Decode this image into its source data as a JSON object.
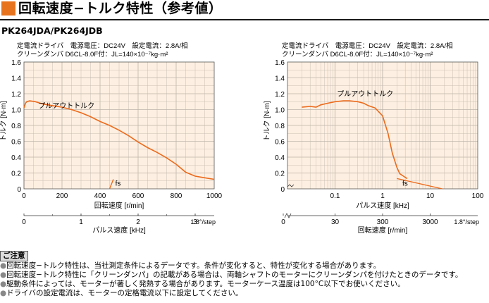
{
  "header": {
    "title": "回転速度−トルク特性（参考値）"
  },
  "model": "PK264JDA/PK264JDB",
  "chart_data": [
    {
      "type": "line",
      "conditions": [
        "定電流ドライバ　電源電圧：DC24V　設定電流：2.8A/相",
        "クリーンダンパ D6CL-8.0F付：JL=140×10⁻⁷kg·m²"
      ],
      "ylabel": "トルク [N·m]",
      "xlabel": "回転速度 [r/min]",
      "xlabel2": "パルス速度 [kHz]",
      "step_label": "1.8°/step",
      "xlim": [
        0,
        1000
      ],
      "ylim": [
        0,
        1.6
      ],
      "x_ticks": [
        "0",
        "200",
        "400",
        "600",
        "800",
        "1000"
      ],
      "x2_ticks": [
        "0",
        "1",
        "2",
        "3"
      ],
      "y_ticks": [
        "0",
        "0.2",
        "0.4",
        "0.6",
        "0.8",
        "1.0",
        "1.2",
        "1.4",
        "1.6"
      ],
      "series": [
        {
          "name": "プルアウトトルク",
          "x": [
            0,
            8,
            15,
            30,
            60,
            100,
            150,
            200,
            250,
            300,
            350,
            400,
            450,
            500,
            550,
            600,
            650,
            700,
            750,
            800,
            850,
            900,
            950,
            1000
          ],
          "y": [
            1.02,
            1.08,
            1.1,
            1.11,
            1.1,
            1.07,
            1.05,
            1.03,
            1.0,
            0.96,
            0.91,
            0.85,
            0.8,
            0.74,
            0.67,
            0.59,
            0.52,
            0.46,
            0.39,
            0.31,
            0.21,
            0.16,
            0.14,
            0.12
          ]
        }
      ],
      "fs": {
        "label": "fs",
        "x": [
          450,
          470
        ],
        "y": [
          0.0,
          0.12
        ]
      },
      "grid": true
    },
    {
      "type": "line",
      "x_scale": "log",
      "conditions": [
        "定電流ドライバ　電源電圧：DC24V　設定電流：2.8A/相",
        "クリーンダンパ D6CL-8.0F付：JL=140×10⁻⁷kg·m²"
      ],
      "ylabel": "トルク [N·m]",
      "xlabel": "パルス速度 [kHz]",
      "xlabel2": "回転速度 [r/min]",
      "step_label": "1.8°/step",
      "xlim": [
        0.01,
        100
      ],
      "ylim": [
        0,
        1.6
      ],
      "x_ticks": [
        "0.1",
        "1",
        "10",
        "100"
      ],
      "x2_ticks": [
        "0",
        "30",
        "300",
        "3000"
      ],
      "y_ticks": [
        "0",
        "0.2",
        "0.4",
        "0.6",
        "0.8",
        "1.0",
        "1.2",
        "1.4",
        "1.6"
      ],
      "series": [
        {
          "name": "プルアウトトルク",
          "x": [
            0.02,
            0.03,
            0.04,
            0.05,
            0.07,
            0.1,
            0.15,
            0.2,
            0.3,
            0.4,
            0.5,
            0.7,
            1.0,
            1.3,
            1.6,
            2.0,
            2.3,
            2.6,
            2.9,
            3.3
          ],
          "y": [
            1.03,
            1.04,
            1.03,
            1.06,
            1.08,
            1.1,
            1.11,
            1.11,
            1.1,
            1.08,
            1.05,
            1.02,
            0.92,
            0.7,
            0.45,
            0.27,
            0.19,
            0.17,
            0.15,
            0.13
          ]
        }
      ],
      "fs": {
        "label": "fs",
        "x": [
          2.0,
          18.0
        ],
        "y": [
          0.13,
          0.0
        ]
      },
      "grid": true
    }
  ],
  "notes": {
    "title": "ご注意",
    "items": [
      "回転速度−トルク特性は、当社測定条件によるデータです。条件が変化すると、特性が変化する場合があります。",
      "回転速度−トルク特性に「クリーンダンパ」の記載がある場合は、両軸シャフトのモーターにクリーンダンパを付けたときのデータです。",
      "駆動条件によっては、モーターが著しく発熱する場合があります。モーターケース温度は100°C以下でお使いください。",
      "ドライバの設定電流は、モーターの定格電流以下に設定してください。"
    ]
  },
  "colors": {
    "accent": "#e8731e",
    "plot_bg": "#fdefe1",
    "grid": "#bdb4aa",
    "curve": "#ec6a1b"
  }
}
